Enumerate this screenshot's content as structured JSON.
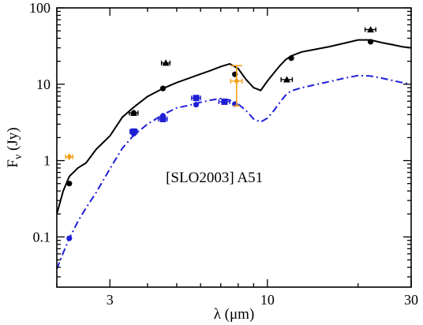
{
  "chart_data": {
    "type": "scatter",
    "title": "",
    "annotation": "[SLO2003] A51",
    "xlabel": "λ (μm)",
    "ylabel_main": "F",
    "ylabel_sub": "ν",
    "ylabel_unit": " (Jy)",
    "xscale": "log",
    "yscale": "log",
    "xlim": [
      2.0,
      30
    ],
    "ylim": [
      0.022,
      100
    ],
    "xticks": [
      {
        "value": 3,
        "label": "3"
      },
      {
        "value": 10,
        "label": "10"
      },
      {
        "value": 30,
        "label": "30"
      }
    ],
    "yticks": [
      {
        "value": 0.1,
        "label": "0.1"
      },
      {
        "value": 1,
        "label": "1"
      },
      {
        "value": 10,
        "label": "10"
      },
      {
        "value": 100,
        "label": "100"
      }
    ],
    "grid": false,
    "colors": {
      "model": "#000000",
      "model2": "#1f1fd6",
      "obs_black": "#000000",
      "obs_blue": "#1f1fd6",
      "obs_orange": "#f5a01a"
    },
    "series": [
      {
        "style": "solid",
        "color": "#000000",
        "x": [
          2.0,
          2.1,
          2.2,
          2.35,
          2.5,
          2.7,
          3.0,
          3.3,
          3.6,
          4.0,
          4.5,
          5.0,
          5.5,
          6.0,
          6.5,
          7.0,
          7.5,
          8.0,
          8.5,
          9.0,
          9.5,
          10.0,
          10.5,
          11.0,
          11.5,
          12.0,
          13.0,
          14.0,
          16.0,
          18.0,
          20.0,
          22.0,
          24.0,
          26.0,
          28.0,
          30.0
        ],
        "y": [
          0.2,
          0.4,
          0.62,
          0.8,
          0.93,
          1.4,
          2.1,
          3.7,
          5.0,
          6.9,
          8.8,
          10.5,
          12.0,
          13.6,
          15.2,
          17.0,
          18.5,
          16.0,
          11.5,
          9.0,
          8.3,
          11.0,
          14.0,
          17.5,
          21.0,
          23.5,
          26.5,
          28.0,
          31.0,
          34.5,
          38.0,
          38.0,
          35.0,
          33.0,
          31.0,
          30.0
        ]
      },
      {
        "style": "dashdot",
        "color": "#1f1fd6",
        "x": [
          2.0,
          2.1,
          2.2,
          2.35,
          2.5,
          2.7,
          3.0,
          3.3,
          3.6,
          4.0,
          4.5,
          5.0,
          5.5,
          6.0,
          6.5,
          7.0,
          7.5,
          8.0,
          8.5,
          9.0,
          9.5,
          10.0,
          10.5,
          11.0,
          11.5,
          12.0,
          13.0,
          14.0,
          16.0,
          18.0,
          20.0,
          22.0,
          24.0,
          26.0,
          28.0,
          30.0
        ],
        "y": [
          0.038,
          0.062,
          0.095,
          0.16,
          0.24,
          0.38,
          0.78,
          1.45,
          2.15,
          3.0,
          4.0,
          4.9,
          5.3,
          5.8,
          6.2,
          6.5,
          6.2,
          5.5,
          4.5,
          3.5,
          3.2,
          3.6,
          4.5,
          5.8,
          7.2,
          8.2,
          9.0,
          9.6,
          10.8,
          12.0,
          13.0,
          12.8,
          12.0,
          11.2,
          10.5,
          10.0
        ]
      }
    ],
    "model_points": {
      "black": [
        {
          "x": 2.2,
          "y": 0.5
        },
        {
          "x": 3.6,
          "y": 4.2
        },
        {
          "x": 4.5,
          "y": 8.8
        },
        {
          "x": 7.8,
          "y": 13.5
        },
        {
          "x": 12.0,
          "y": 22.0
        },
        {
          "x": 22.0,
          "y": 36.0
        }
      ],
      "blue": [
        {
          "x": 2.2,
          "y": 0.096
        },
        {
          "x": 3.6,
          "y": 2.25
        },
        {
          "x": 4.5,
          "y": 3.85
        },
        {
          "x": 5.8,
          "y": 5.4
        },
        {
          "x": 7.8,
          "y": 5.5
        }
      ]
    },
    "observations": {
      "black_triangles": [
        {
          "x": 3.6,
          "y": 4.2,
          "xerr": 0.12
        },
        {
          "x": 4.6,
          "y": 19.0,
          "xerr": 0.15
        },
        {
          "x": 11.6,
          "y": 11.5,
          "xerr": 0.5
        },
        {
          "x": 22.0,
          "y": 52.0,
          "xerr": 0.9
        }
      ],
      "blue_squares": [
        {
          "x": 3.6,
          "y": 2.4,
          "xerr": 0.1
        },
        {
          "x": 4.5,
          "y": 3.5,
          "xerr": 0.15
        },
        {
          "x": 5.8,
          "y": 6.6,
          "xerr": 0.2
        },
        {
          "x": 7.2,
          "y": 5.9,
          "xerr": 0.3
        }
      ],
      "orange_diamonds": [
        {
          "x": 2.2,
          "y": 1.12,
          "xerr": 0.06,
          "ylo": null,
          "yhi": null
        },
        {
          "x": 7.9,
          "y": 11.0,
          "xerr": 0.35,
          "ylo": 5.2,
          "yhi": 17.5
        }
      ]
    }
  }
}
